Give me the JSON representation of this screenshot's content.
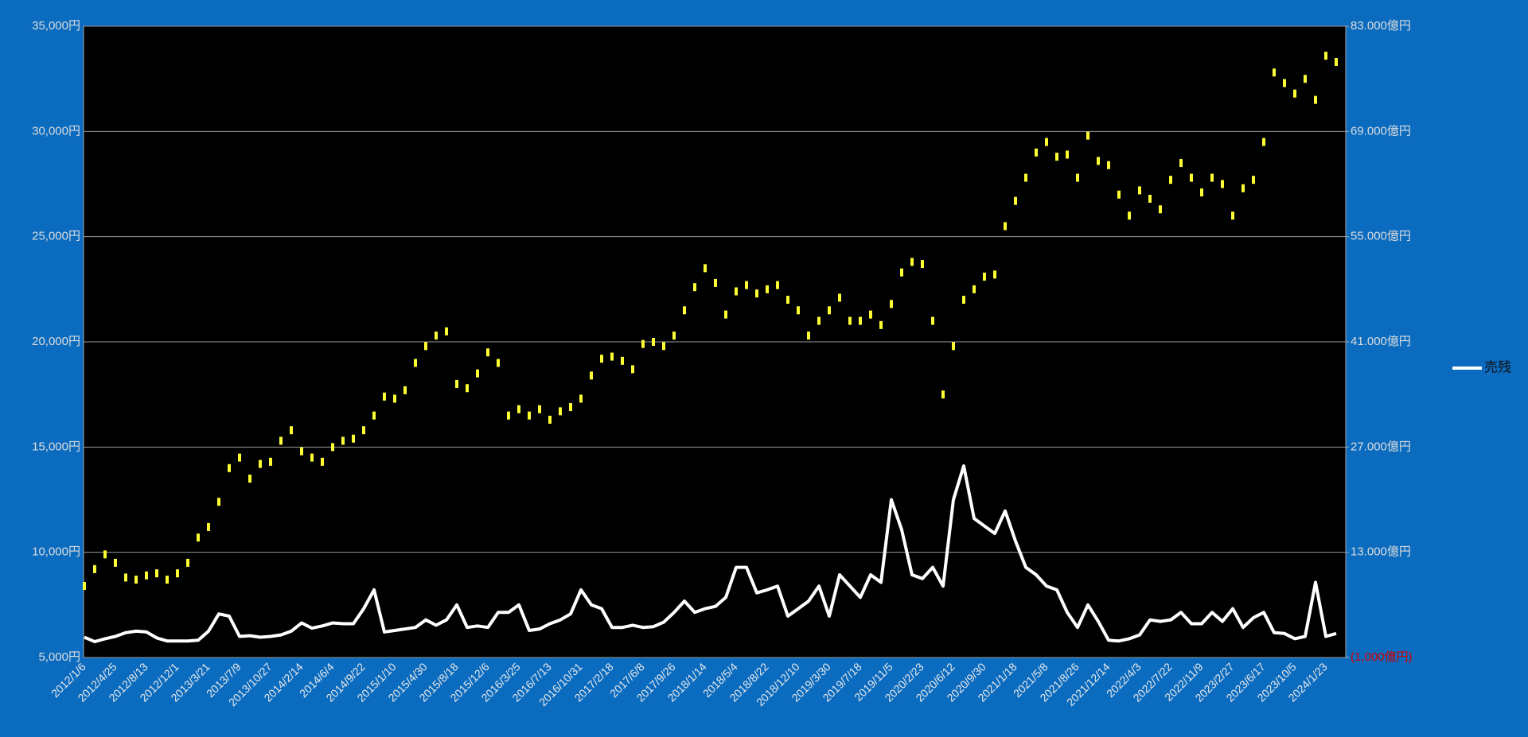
{
  "chart_data": {
    "type": "line",
    "categories": [
      "2012/1/6",
      null,
      null,
      "2012/4/25",
      null,
      null,
      "2012/8/13",
      null,
      null,
      "2012/12/1",
      null,
      null,
      "2013/3/21",
      null,
      null,
      "2013/7/9",
      null,
      null,
      "2013/10/27",
      null,
      null,
      "2014/2/14",
      null,
      null,
      "2014/6/4",
      null,
      null,
      "2014/9/22",
      null,
      null,
      "2015/1/10",
      null,
      null,
      "2015/4/30",
      null,
      null,
      "2015/8/18",
      null,
      null,
      "2015/12/6",
      null,
      null,
      "2016/3/25",
      null,
      null,
      "2016/7/13",
      null,
      null,
      "2016/10/31",
      null,
      null,
      "2017/2/18",
      null,
      null,
      "2017/6/8",
      null,
      null,
      "2017/9/26",
      null,
      null,
      "2018/1/14",
      null,
      null,
      "2018/5/4",
      null,
      null,
      "2018/8/22",
      null,
      null,
      "2018/12/10",
      null,
      null,
      "2019/3/30",
      null,
      null,
      "2019/7/18",
      null,
      null,
      "2019/11/5",
      null,
      null,
      "2020/2/23",
      null,
      null,
      "2020/6/12",
      null,
      null,
      "2020/9/30",
      null,
      null,
      "2021/1/18",
      null,
      null,
      "2021/5/8",
      null,
      null,
      "2021/8/26",
      null,
      null,
      "2021/12/14",
      null,
      null,
      "2022/4/3",
      null,
      null,
      "2022/7/22",
      null,
      null,
      "2022/11/9",
      null,
      null,
      "2023/2/27",
      null,
      null,
      "2023/6/17",
      null,
      null,
      "2023/10/5",
      null,
      null,
      "2024/1/23",
      null
    ],
    "series": [
      {
        "color": "#ffff33",
        "axis": "y",
        "values": [
          8400,
          9200,
          9900,
          9500,
          8800,
          8700,
          8900,
          9000,
          8700,
          9000,
          9500,
          10700,
          11200,
          12400,
          14000,
          14500,
          13500,
          14200,
          14300,
          15300,
          15800,
          14800,
          14500,
          14300,
          15000,
          15300,
          15400,
          15800,
          16500,
          17400,
          17300,
          17700,
          19000,
          19800,
          20300,
          20500,
          18000,
          17800,
          18500,
          19500,
          19000,
          16500,
          16800,
          16500,
          16800,
          16300,
          16700,
          16900,
          17300,
          18400,
          19200,
          19300,
          19100,
          18700,
          19900,
          20000,
          19800,
          20300,
          21500,
          22600,
          23500,
          22800,
          21300,
          22400,
          22700,
          22300,
          22500,
          22700,
          22000,
          21500,
          20300,
          21000,
          21500,
          22100,
          21000,
          21000,
          21300,
          20800,
          21800,
          23300,
          23800,
          23700,
          21000,
          17500,
          19800,
          22000,
          22500,
          23100,
          23200,
          25500,
          26700,
          27800,
          29000,
          29500,
          28800,
          28900,
          27800,
          29800,
          28600,
          28400,
          27000,
          26000,
          27200,
          26800,
          26300,
          27700,
          28500,
          27800,
          27100,
          27800,
          27500,
          26000,
          27300,
          27700,
          29500,
          32800,
          32300,
          31800,
          32500,
          31500,
          33600,
          33300
        ]
      },
      {
        "name": "売残",
        "color": "#ffffff",
        "axis": "y2",
        "values": [
          1700,
          1100,
          1500,
          1800,
          2300,
          2500,
          2400,
          1600,
          1200,
          1200,
          1200,
          1300,
          2500,
          4800,
          4500,
          1800,
          1900,
          1700,
          1800,
          2000,
          2500,
          3600,
          2900,
          3200,
          3600,
          3500,
          3500,
          5500,
          8000,
          2400,
          2600,
          2800,
          3000,
          4000,
          3300,
          4000,
          6000,
          3000,
          3200,
          3000,
          5000,
          5000,
          6000,
          2600,
          2800,
          3500,
          4000,
          4800,
          8000,
          6000,
          5500,
          3000,
          3000,
          3300,
          3000,
          3100,
          3700,
          5000,
          6500,
          5000,
          5500,
          5800,
          7000,
          11000,
          11000,
          7600,
          8000,
          8500,
          4500,
          5500,
          6500,
          8500,
          4500,
          10000,
          8500,
          7000,
          10000,
          9000,
          20000,
          16000,
          10000,
          9500,
          11000,
          8500,
          20000,
          24500,
          17500,
          16500,
          15500,
          18500,
          14500,
          11000,
          10000,
          8500,
          8000,
          5000,
          3000,
          6000,
          3800,
          1300,
          1200,
          1500,
          2000,
          4000,
          3800,
          4000,
          5000,
          3500,
          3500,
          5000,
          3800,
          5500,
          3000,
          4300,
          5000,
          2300,
          2200,
          1500,
          1800,
          9000,
          1800,
          2200
        ]
      }
    ],
    "ylim": [
      5000,
      35000
    ],
    "yticks": [
      {
        "value": 5000,
        "label": "5,000円"
      },
      {
        "value": 10000,
        "label": "10,000円"
      },
      {
        "value": 15000,
        "label": "15,000円"
      },
      {
        "value": 20000,
        "label": "20,000円"
      },
      {
        "value": 25000,
        "label": "25,000円"
      },
      {
        "value": 30000,
        "label": "30,000円"
      },
      {
        "value": 35000,
        "label": "35,000円"
      }
    ],
    "y2lim": [
      -1000,
      83000
    ],
    "y2ticks": [
      {
        "value": -1000,
        "label": "(1,000億円)"
      },
      {
        "value": 13000,
        "label": "13.000億円"
      },
      {
        "value": 27000,
        "label": "27.000億円"
      },
      {
        "value": 41000,
        "label": "41.000億円"
      },
      {
        "value": 55000,
        "label": "55.000億円"
      },
      {
        "value": 69000,
        "label": "69.000億円"
      },
      {
        "value": 83000,
        "label": "83.000億円"
      }
    ],
    "grid": true,
    "legend": "right"
  }
}
